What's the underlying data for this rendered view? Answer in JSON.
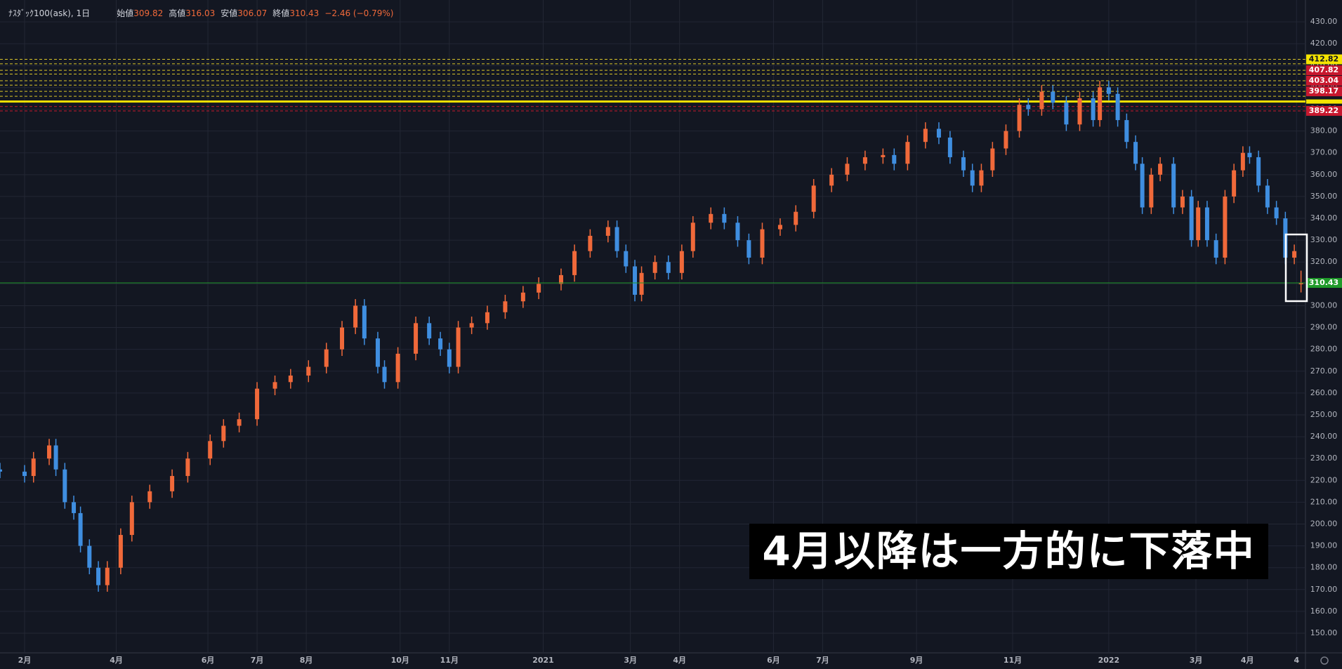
{
  "chart_data": {
    "type": "candlestick",
    "symbol": "ﾅｽﾀﾞｯｸ100(ask), 1日",
    "ohlc_header": {
      "open_label": "始値",
      "open": 309.82,
      "high_label": "高値",
      "high": 316.03,
      "low_label": "安値",
      "low": 306.07,
      "close_label": "終値",
      "close": 310.43,
      "change": "−2.46 (−0.79%)"
    },
    "annotation": "4月以降は一方的に下落中",
    "up_color": "#f0693a",
    "down_color": "#3f8ee0",
    "x": [
      0,
      11,
      15,
      22,
      25,
      29,
      33,
      36,
      40,
      44,
      48,
      54,
      59,
      67,
      77,
      84,
      94,
      100,
      107,
      115,
      123,
      130,
      138,
      146,
      153,
      159,
      163,
      169,
      172,
      178,
      186,
      192,
      197,
      201,
      205,
      211,
      218,
      226,
      234,
      241,
      251,
      257,
      264,
      272,
      276,
      280,
      284,
      287,
      293,
      299,
      305,
      310,
      318,
      324,
      330,
      335,
      341,
      349,
      356,
      364,
      372,
      379,
      387,
      395,
      400,
      406,
      414,
      420,
      425,
      431,
      435,
      439,
      444,
      450,
      456,
      460,
      466,
      471,
      477,
      483,
      489,
      492,
      496,
      500,
      504,
      508,
      511,
      515,
      519,
      525,
      529,
      533,
      536,
      540,
      544,
      548,
      552,
      556,
      559,
      563,
      567,
      571,
      575,
      579,
      582
    ],
    "open": [
      225,
      224,
      222,
      230,
      236,
      225,
      210,
      205,
      190,
      180,
      172,
      180,
      195,
      210,
      215,
      222,
      230,
      238,
      245,
      248,
      262,
      265,
      268,
      272,
      280,
      290,
      300,
      285,
      272,
      265,
      278,
      292,
      285,
      280,
      272,
      290,
      292,
      297,
      302,
      306,
      310,
      314,
      325,
      332,
      336,
      325,
      318,
      305,
      315,
      320,
      315,
      325,
      338,
      342,
      338,
      330,
      322,
      335,
      337,
      343,
      355,
      360,
      365,
      368,
      369,
      365,
      375,
      381,
      377,
      368,
      362,
      355,
      362,
      372,
      380,
      392,
      390,
      398,
      393,
      383,
      395,
      385,
      400,
      397,
      385,
      375,
      365,
      345,
      360,
      365,
      345,
      350,
      330,
      345,
      330,
      322,
      350,
      362,
      370,
      368,
      355,
      345,
      340,
      322,
      309.82
    ],
    "high": [
      228,
      227,
      233,
      239,
      239,
      228,
      213,
      208,
      193,
      183,
      183,
      198,
      213,
      218,
      225,
      233,
      241,
      248,
      251,
      265,
      268,
      271,
      275,
      283,
      293,
      303,
      303,
      288,
      275,
      281,
      295,
      295,
      288,
      283,
      293,
      295,
      300,
      305,
      309,
      313,
      317,
      328,
      335,
      339,
      339,
      328,
      321,
      318,
      323,
      323,
      328,
      341,
      345,
      345,
      341,
      333,
      338,
      340,
      346,
      358,
      363,
      368,
      371,
      372,
      372,
      378,
      384,
      384,
      380,
      371,
      365,
      365,
      375,
      383,
      395,
      395,
      401,
      401,
      396,
      398,
      398,
      403,
      403,
      400,
      388,
      378,
      368,
      363,
      368,
      368,
      353,
      353,
      348,
      348,
      333,
      353,
      365,
      373,
      373,
      371,
      358,
      348,
      343,
      328,
      316.03
    ],
    "low": [
      221,
      219,
      219,
      227,
      222,
      207,
      202,
      187,
      177,
      169,
      169,
      177,
      192,
      207,
      212,
      219,
      227,
      235,
      242,
      245,
      259,
      262,
      265,
      269,
      277,
      287,
      282,
      269,
      262,
      262,
      275,
      282,
      277,
      269,
      269,
      287,
      289,
      294,
      299,
      303,
      307,
      311,
      322,
      329,
      322,
      315,
      302,
      302,
      312,
      312,
      312,
      322,
      335,
      335,
      327,
      319,
      319,
      332,
      334,
      340,
      352,
      357,
      362,
      365,
      362,
      362,
      372,
      374,
      365,
      359,
      352,
      352,
      359,
      369,
      377,
      387,
      387,
      390,
      380,
      380,
      382,
      382,
      394,
      382,
      372,
      362,
      342,
      342,
      357,
      342,
      342,
      327,
      327,
      327,
      319,
      319,
      347,
      359,
      365,
      352,
      342,
      337,
      319,
      319,
      306.07
    ],
    "close": [
      224,
      222,
      230,
      236,
      225,
      210,
      205,
      190,
      180,
      172,
      180,
      195,
      210,
      215,
      222,
      230,
      238,
      245,
      248,
      262,
      265,
      268,
      272,
      280,
      290,
      300,
      285,
      272,
      265,
      278,
      292,
      285,
      280,
      272,
      290,
      292,
      297,
      302,
      306,
      310,
      314,
      325,
      332,
      336,
      325,
      318,
      305,
      315,
      320,
      315,
      325,
      338,
      342,
      338,
      330,
      322,
      335,
      337,
      343,
      355,
      360,
      365,
      368,
      369,
      365,
      375,
      381,
      377,
      368,
      362,
      355,
      362,
      372,
      380,
      392,
      390,
      398,
      393,
      383,
      395,
      385,
      400,
      397,
      385,
      375,
      365,
      345,
      360,
      365,
      345,
      350,
      330,
      345,
      330,
      322,
      350,
      362,
      370,
      368,
      355,
      345,
      340,
      322,
      325,
      310.43
    ],
    "xlim": [
      0,
      584
    ],
    "xticks": [
      {
        "value": 11,
        "label": "2月"
      },
      {
        "value": 52,
        "label": "4月"
      },
      {
        "value": 93,
        "label": "6月"
      },
      {
        "value": 115,
        "label": "7月"
      },
      {
        "value": 137,
        "label": "8月"
      },
      {
        "value": 179,
        "label": "10月"
      },
      {
        "value": 201,
        "label": "11月"
      },
      {
        "value": 243,
        "label": "2021"
      },
      {
        "value": 282,
        "label": "3月"
      },
      {
        "value": 304,
        "label": "4月"
      },
      {
        "value": 346,
        "label": "6月"
      },
      {
        "value": 368,
        "label": "7月"
      },
      {
        "value": 410,
        "label": "9月"
      },
      {
        "value": 453,
        "label": "11月"
      },
      {
        "value": 496,
        "label": "2022"
      },
      {
        "value": 535,
        "label": "3月"
      },
      {
        "value": 558,
        "label": "4月"
      },
      {
        "value": 580,
        "label": "4"
      }
    ],
    "ylim": [
      141,
      440
    ],
    "yticks": [
      {
        "value": 150,
        "label": "150.00"
      },
      {
        "value": 160,
        "label": "160.00"
      },
      {
        "value": 170,
        "label": "170.00"
      },
      {
        "value": 180,
        "label": "180.00"
      },
      {
        "value": 190,
        "label": "190.00"
      },
      {
        "value": 200,
        "label": "200.00"
      },
      {
        "value": 210,
        "label": "210.00"
      },
      {
        "value": 220,
        "label": "220.00"
      },
      {
        "value": 230,
        "label": "230.00"
      },
      {
        "value": 240,
        "label": "240.00"
      },
      {
        "value": 250,
        "label": "250.00"
      },
      {
        "value": 260,
        "label": "260.00"
      },
      {
        "value": 270,
        "label": "270.00"
      },
      {
        "value": 280,
        "label": "280.00"
      },
      {
        "value": 290,
        "label": "290.00"
      },
      {
        "value": 300,
        "label": "300.00"
      },
      {
        "value": 310,
        "label": "310.00"
      },
      {
        "value": 320,
        "label": "320.00"
      },
      {
        "value": 330,
        "label": "330.00"
      },
      {
        "value": 340,
        "label": "340.00"
      },
      {
        "value": 350,
        "label": "350.00"
      },
      {
        "value": 360,
        "label": "360.00"
      },
      {
        "value": 370,
        "label": "370.00"
      },
      {
        "value": 380,
        "label": "380.00"
      },
      {
        "value": 390,
        "label": "390.00"
      },
      {
        "value": 400,
        "label": "400.00"
      },
      {
        "value": 410,
        "label": "410.00"
      },
      {
        "value": 420,
        "label": "420.00"
      },
      {
        "value": 430,
        "label": "430.00"
      }
    ],
    "grid": true,
    "levels": [
      {
        "price": 412.82,
        "color": "#d9c52a",
        "tag": "#f5e400"
      },
      {
        "price": 410.8,
        "color": "#d9c52a",
        "tag": null
      },
      {
        "price": 407.82,
        "color": "#d9c52a",
        "tag": "#c8182e"
      },
      {
        "price": 406.1,
        "color": "#d9c52a",
        "tag": null
      },
      {
        "price": 403.04,
        "color": "#d9c52a",
        "tag": "#c8182e"
      },
      {
        "price": 401.0,
        "color": "#d9c52a",
        "tag": null
      },
      {
        "price": 398.17,
        "color": "#d9c52a",
        "tag": "#c8182e"
      },
      {
        "price": 395.9,
        "color": "#d9c52a",
        "tag": null
      },
      {
        "price": 393.5,
        "color": "#f5e400",
        "tag": null
      },
      {
        "price": 391.2,
        "color": "#c8182e",
        "tag": null
      },
      {
        "price": 389.22,
        "color": "#c8182e",
        "tag": "#c8182e"
      }
    ],
    "last_price": 310.43,
    "last_color": "#1f9a2a"
  }
}
